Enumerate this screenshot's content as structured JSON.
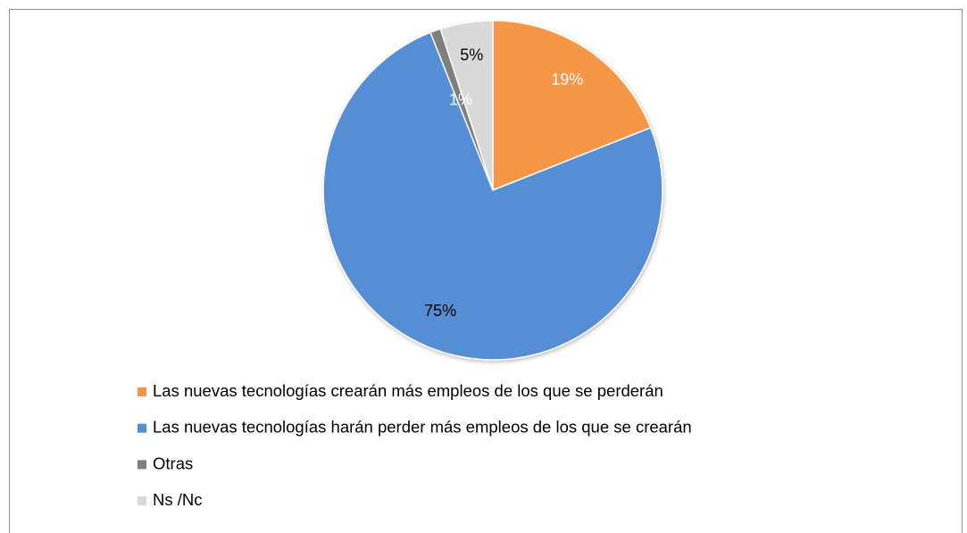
{
  "chart_data": {
    "type": "pie",
    "categories": [
      "Las nuevas tecnologías crearán más empleos de los que se perderán",
      "Las nuevas tecnologías harán perder más empleos de los que se crearán",
      "Otras",
      "Ns /Nc"
    ],
    "values": [
      19,
      75,
      1,
      5
    ],
    "value_labels": [
      "19%",
      "75%",
      "1%",
      "5%"
    ],
    "colors": [
      "#F79646",
      "#558ED5",
      "#7F7F7F",
      "#D9D9D9"
    ],
    "label_colors": [
      "#FFFFFF",
      "#000000",
      "#FFFFFF",
      "#000000"
    ]
  }
}
